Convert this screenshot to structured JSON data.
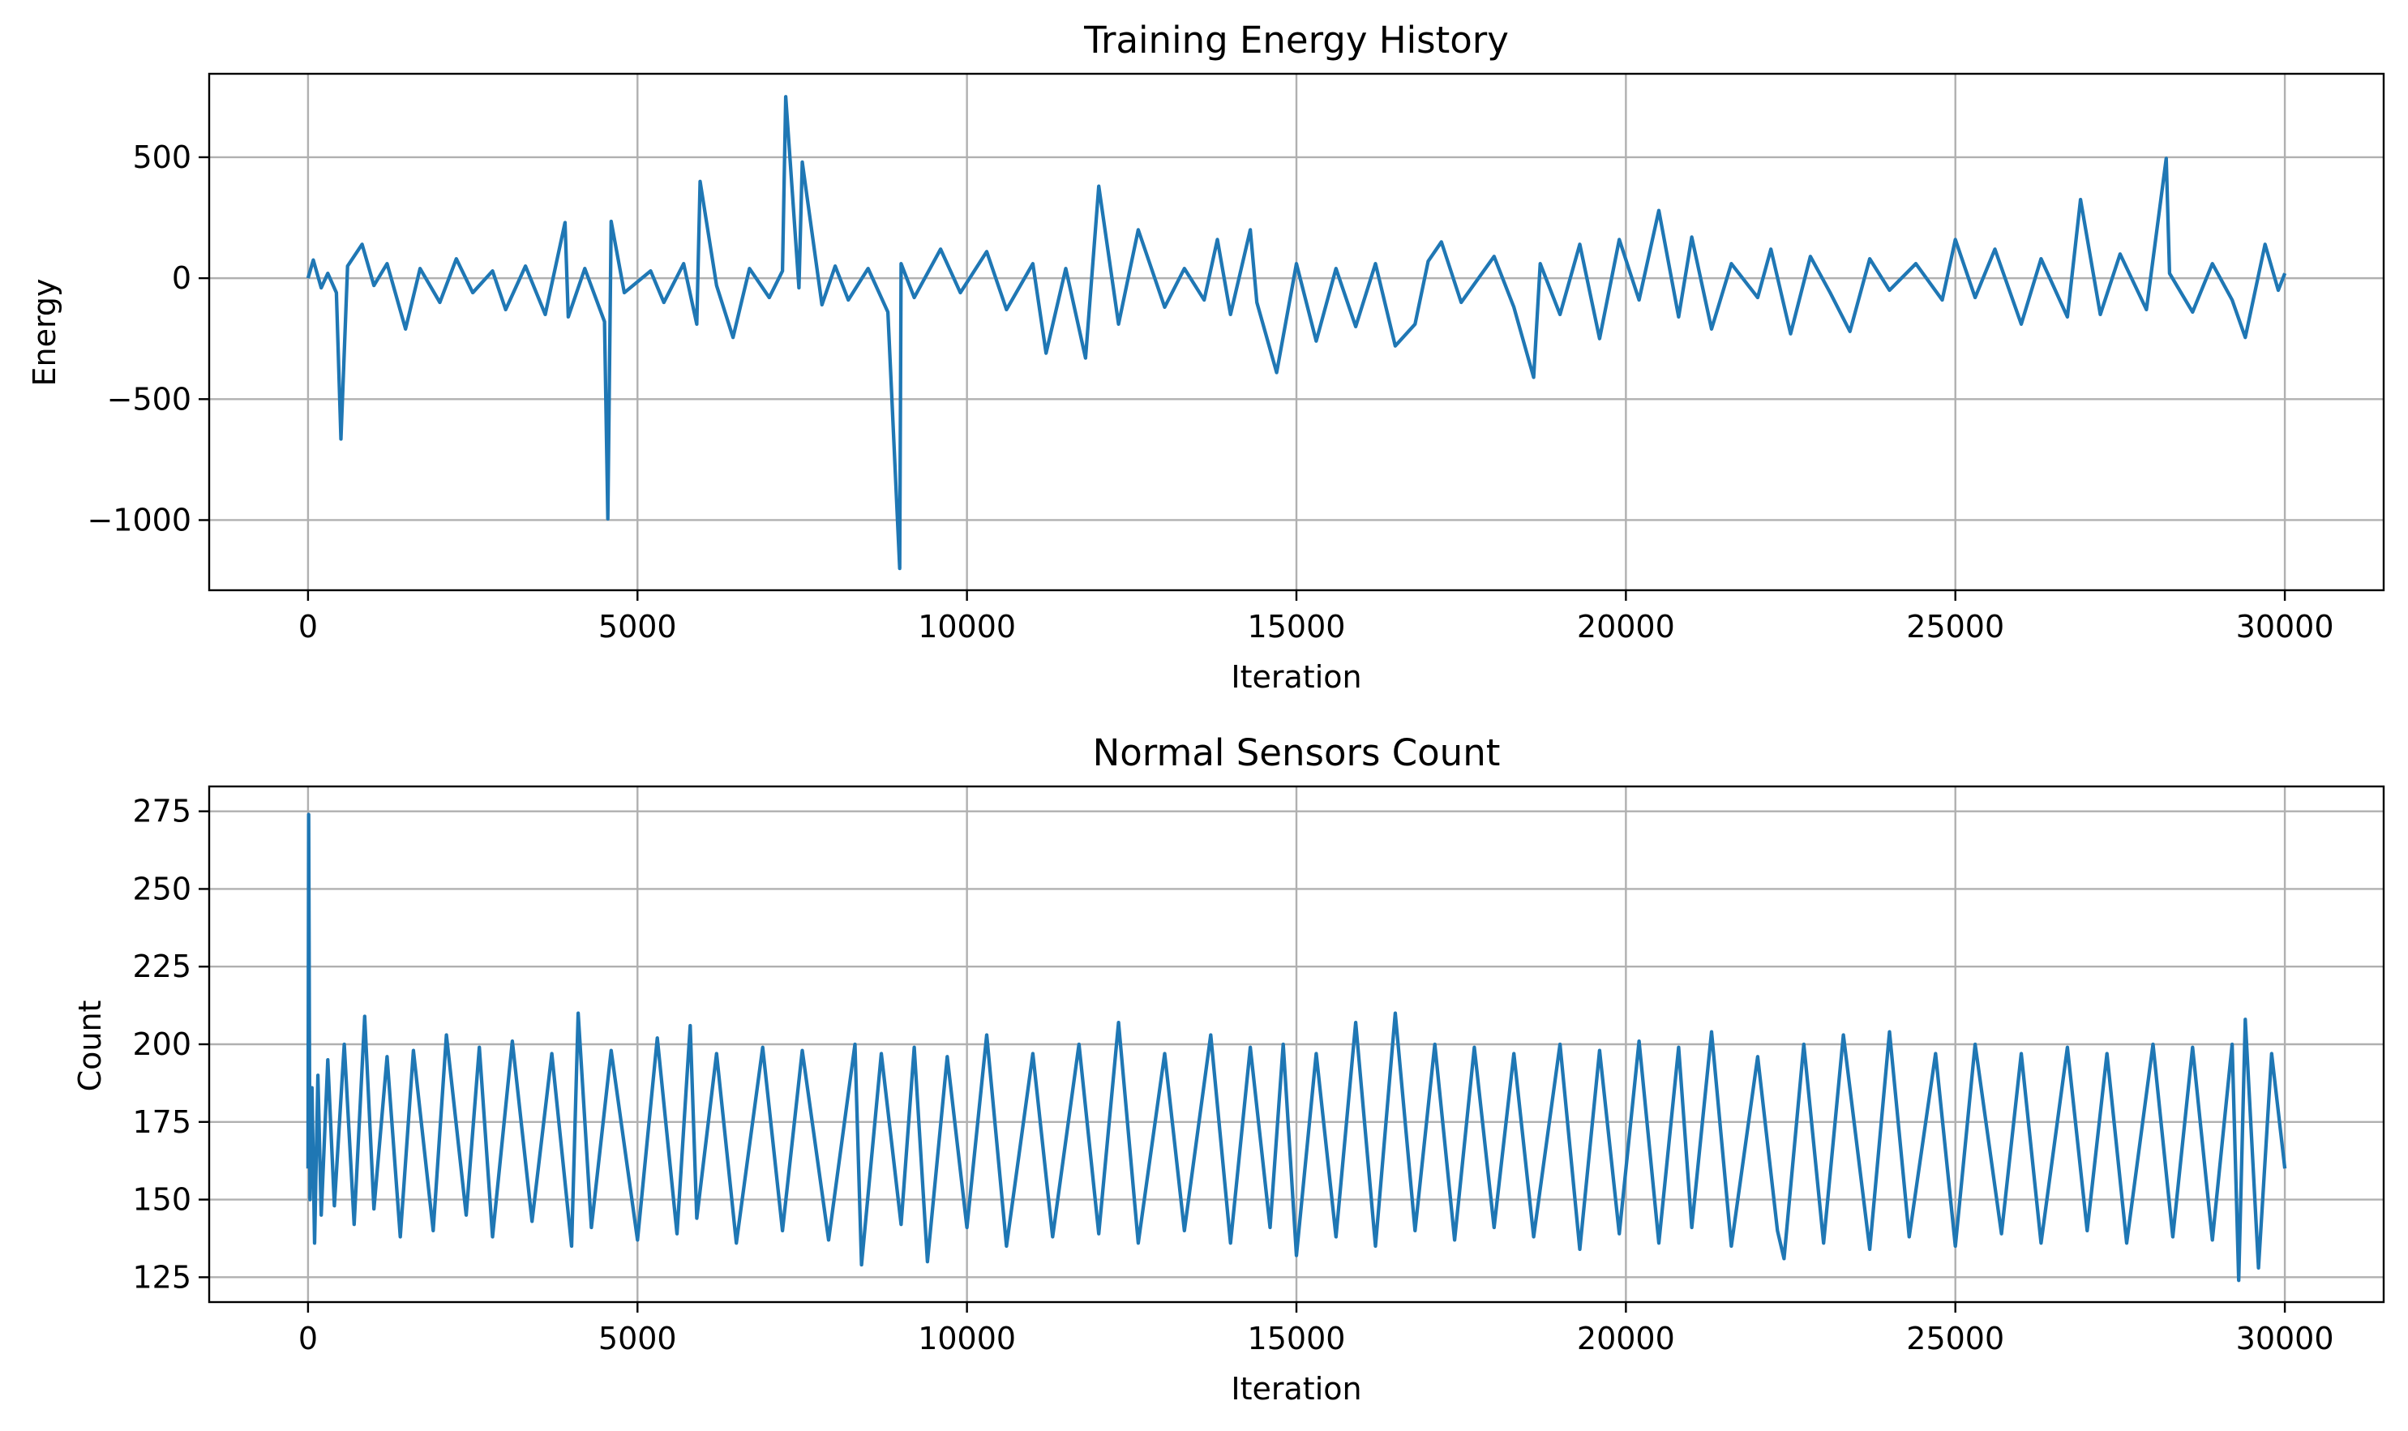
{
  "chart_data": [
    {
      "type": "line",
      "title": "Training Energy History",
      "xlabel": "Iteration",
      "ylabel": "Energy",
      "xlim": [
        -1500,
        31500
      ],
      "ylim": [
        -1290,
        845
      ],
      "xticks": [
        0,
        5000,
        10000,
        15000,
        20000,
        25000,
        30000
      ],
      "yticks": [
        -1000,
        -500,
        0,
        500
      ],
      "xtick_labels": [
        "0",
        "5000",
        "10000",
        "15000",
        "20000",
        "25000",
        "30000"
      ],
      "ytick_labels": [
        "−1000",
        "−500",
        "0",
        "500"
      ],
      "grid": true,
      "color": "#1f77b4",
      "series": [
        {
          "x": [
            0,
            80,
            200,
            300,
            430,
            500,
            600,
            820,
            1000,
            1200,
            1480,
            1700,
            2000,
            2250,
            2500,
            2800,
            3000,
            3300,
            3600,
            3900,
            3950,
            4200,
            4500,
            4550,
            4600,
            4800,
            5200,
            5400,
            5700,
            5900,
            5950,
            6200,
            6450,
            6700,
            7000,
            7200,
            7250,
            7450,
            7500,
            7800,
            8000,
            8200,
            8500,
            8800,
            8980,
            9000,
            9200,
            9600,
            9900,
            10300,
            10600,
            11000,
            11200,
            11500,
            11800,
            12000,
            12300,
            12600,
            13000,
            13300,
            13600,
            13800,
            14000,
            14300,
            14400,
            14700,
            15000,
            15300,
            15600,
            15900,
            16200,
            16500,
            16800,
            17000,
            17200,
            17500,
            18000,
            18300,
            18600,
            18700,
            19000,
            19300,
            19600,
            19900,
            20200,
            20500,
            20800,
            21000,
            21300,
            21600,
            22000,
            22200,
            22500,
            22800,
            23100,
            23400,
            23700,
            24000,
            24400,
            24800,
            25000,
            25300,
            25600,
            26000,
            26300,
            26700,
            26900,
            27200,
            27500,
            27900,
            28200,
            28250,
            28600,
            28900,
            29200,
            29400,
            29700,
            29900,
            30000
          ],
          "y": [
            0,
            75,
            -40,
            20,
            -60,
            -665,
            50,
            140,
            -30,
            60,
            -210,
            40,
            -100,
            80,
            -60,
            30,
            -130,
            50,
            -150,
            230,
            -160,
            40,
            -180,
            -995,
            235,
            -60,
            30,
            -100,
            60,
            -190,
            400,
            -30,
            -245,
            40,
            -80,
            30,
            750,
            -40,
            480,
            -110,
            50,
            -90,
            40,
            -140,
            -1200,
            60,
            -80,
            120,
            -60,
            110,
            -130,
            60,
            -310,
            40,
            -330,
            380,
            -190,
            200,
            -120,
            40,
            -90,
            160,
            -150,
            200,
            -100,
            -390,
            60,
            -260,
            40,
            -200,
            60,
            -280,
            -190,
            70,
            150,
            -100,
            90,
            -120,
            -410,
            60,
            -150,
            140,
            -250,
            160,
            -90,
            280,
            -160,
            170,
            -210,
            60,
            -80,
            120,
            -230,
            90,
            -60,
            -220,
            80,
            -50,
            60,
            -90,
            160,
            -80,
            120,
            -190,
            80,
            -160,
            325,
            -150,
            100,
            -130,
            495,
            20,
            -140,
            60,
            -90,
            -245,
            140,
            -50,
            20
          ]
        }
      ]
    },
    {
      "type": "line",
      "title": "Normal Sensors Count",
      "xlabel": "Iteration",
      "ylabel": "Count",
      "xlim": [
        -1500,
        31500
      ],
      "ylim": [
        117,
        283
      ],
      "xticks": [
        0,
        5000,
        10000,
        15000,
        20000,
        25000,
        30000
      ],
      "yticks": [
        125,
        150,
        175,
        200,
        225,
        250,
        275
      ],
      "xtick_labels": [
        "0",
        "5000",
        "10000",
        "15000",
        "20000",
        "25000",
        "30000"
      ],
      "ytick_labels": [
        "125",
        "150",
        "175",
        "200",
        "225",
        "250",
        "275"
      ],
      "grid": true,
      "color": "#1f77b4",
      "series": [
        {
          "x": [
            0,
            10,
            30,
            60,
            100,
            150,
            200,
            300,
            400,
            550,
            700,
            860,
            1000,
            1200,
            1400,
            1600,
            1900,
            2100,
            2400,
            2600,
            2800,
            3100,
            3400,
            3700,
            4000,
            4100,
            4300,
            4600,
            5000,
            5300,
            5600,
            5800,
            5900,
            6200,
            6500,
            6900,
            7200,
            7500,
            7900,
            8300,
            8400,
            8700,
            9000,
            9200,
            9400,
            9700,
            10000,
            10300,
            10600,
            11000,
            11300,
            11700,
            12000,
            12300,
            12600,
            13000,
            13300,
            13700,
            14000,
            14300,
            14600,
            14800,
            15000,
            15300,
            15600,
            15900,
            16200,
            16500,
            16800,
            17100,
            17400,
            17700,
            18000,
            18300,
            18600,
            19000,
            19300,
            19600,
            19900,
            20200,
            20500,
            20800,
            21000,
            21300,
            21600,
            22000,
            22300,
            22400,
            22700,
            23000,
            23300,
            23700,
            24000,
            24300,
            24700,
            25000,
            25300,
            25700,
            26000,
            26300,
            26700,
            27000,
            27300,
            27600,
            28000,
            28300,
            28600,
            28900,
            29200,
            29300,
            29400,
            29600,
            29800,
            30000
          ],
          "y": [
            160,
            274,
            150,
            186,
            136,
            190,
            145,
            195,
            148,
            200,
            142,
            209,
            147,
            196,
            138,
            198,
            140,
            203,
            145,
            199,
            138,
            201,
            143,
            197,
            135,
            210,
            141,
            198,
            137,
            202,
            139,
            206,
            144,
            197,
            136,
            199,
            140,
            198,
            137,
            200,
            129,
            197,
            142,
            199,
            130,
            196,
            141,
            203,
            135,
            197,
            138,
            200,
            139,
            207,
            136,
            197,
            140,
            203,
            136,
            199,
            141,
            200,
            132,
            197,
            138,
            207,
            135,
            210,
            140,
            200,
            137,
            199,
            141,
            197,
            138,
            200,
            134,
            198,
            139,
            201,
            136,
            199,
            141,
            204,
            135,
            196,
            140,
            131,
            200,
            136,
            203,
            134,
            204,
            138,
            197,
            135,
            200,
            139,
            197,
            136,
            199,
            140,
            197,
            136,
            200,
            138,
            199,
            137,
            200,
            124,
            208,
            128,
            197,
            160
          ]
        }
      ]
    }
  ]
}
